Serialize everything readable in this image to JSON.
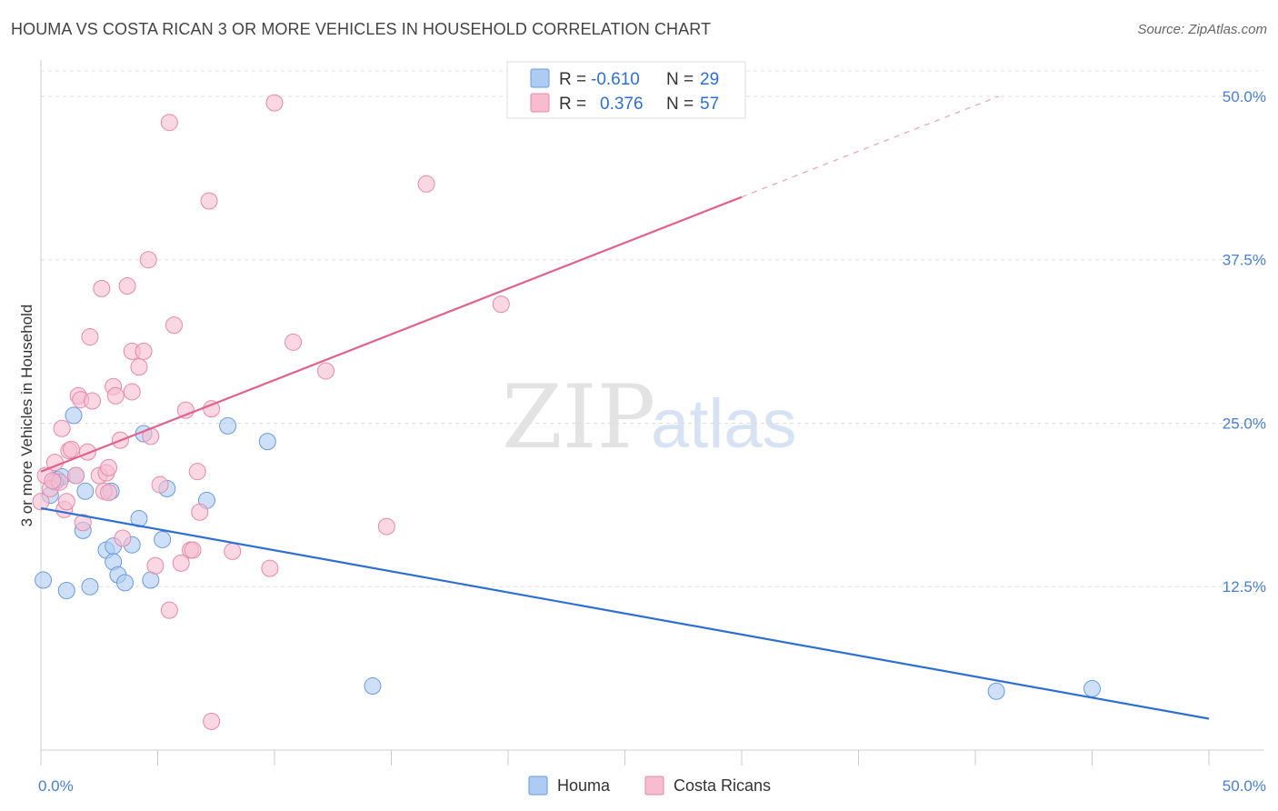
{
  "title": "HOUMA VS COSTA RICAN 3 OR MORE VEHICLES IN HOUSEHOLD CORRELATION CHART",
  "source": "Source: ZipAtlas.com",
  "watermark": {
    "zip": "ZIP",
    "atlas": "atlas"
  },
  "legend": {
    "rows": [
      {
        "r_label": "R =",
        "r_value": "-0.610",
        "n_label": "N =",
        "n_value": "29",
        "fill": "#aecbf2",
        "stroke": "#6a9bdc"
      },
      {
        "r_label": "R =",
        "r_value": "0.376",
        "n_label": "N =",
        "n_value": "57",
        "fill": "#f7bcd0",
        "stroke": "#e58aa8"
      }
    ]
  },
  "bottom_legend": [
    {
      "label": "Houma",
      "fill": "#aecbf2",
      "stroke": "#6a9bdc"
    },
    {
      "label": "Costa Ricans",
      "fill": "#f7bcd0",
      "stroke": "#e58aa8"
    }
  ],
  "chart_data": {
    "type": "scatter",
    "title": "HOUMA VS COSTA RICAN 3 OR MORE VEHICLES IN HOUSEHOLD CORRELATION CHART",
    "xlabel": "",
    "ylabel": "3 or more Vehicles in Household",
    "xlim": [
      0,
      50
    ],
    "ylim": [
      0,
      52.5
    ],
    "x_tick_labels": [
      "0.0%",
      "50.0%"
    ],
    "y_ticks": [
      12.5,
      25.0,
      37.5,
      50.0
    ],
    "y_tick_labels": [
      "12.5%",
      "25.0%",
      "37.5%",
      "50.0%"
    ],
    "grid": true,
    "legend_position": "top-center",
    "series": [
      {
        "name": "Houma",
        "color": "#6a9bdc",
        "fill": "#aecbf2",
        "trend": {
          "x": [
            0,
            50
          ],
          "y": [
            18.5,
            2.4
          ],
          "color": "#2f6fd1"
        },
        "points": [
          [
            0.1,
            13.0
          ],
          [
            0.4,
            19.5
          ],
          [
            0.7,
            20.7
          ],
          [
            0.9,
            20.9
          ],
          [
            1.1,
            12.2
          ],
          [
            1.5,
            21.0
          ],
          [
            1.4,
            25.6
          ],
          [
            1.8,
            16.8
          ],
          [
            1.9,
            19.8
          ],
          [
            2.1,
            12.5
          ],
          [
            2.8,
            15.3
          ],
          [
            3.1,
            15.6
          ],
          [
            3.1,
            14.4
          ],
          [
            3.3,
            13.4
          ],
          [
            3.6,
            12.8
          ],
          [
            3.9,
            15.7
          ],
          [
            4.2,
            17.7
          ],
          [
            4.4,
            24.2
          ],
          [
            4.7,
            13.0
          ],
          [
            5.2,
            16.1
          ],
          [
            5.4,
            20.0
          ],
          [
            7.1,
            19.1
          ],
          [
            8.0,
            24.8
          ],
          [
            9.7,
            23.6
          ],
          [
            14.2,
            4.9
          ],
          [
            40.9,
            4.5
          ],
          [
            45.0,
            4.7
          ],
          [
            3.0,
            19.8
          ],
          [
            0.6,
            20.5
          ]
        ]
      },
      {
        "name": "Costa Ricans",
        "color": "#e58aa8",
        "fill": "#f7bcd0",
        "trend": {
          "x": [
            0,
            30
          ],
          "y": [
            21.3,
            42.3
          ],
          "ext_x": [
            30,
            41
          ],
          "ext_y": [
            42.3,
            50.0
          ],
          "color": "#e0628e"
        },
        "points": [
          [
            0.0,
            19.0
          ],
          [
            0.2,
            21.0
          ],
          [
            0.4,
            20.0
          ],
          [
            0.6,
            22.0
          ],
          [
            0.8,
            20.5
          ],
          [
            0.9,
            24.6
          ],
          [
            1.0,
            18.4
          ],
          [
            1.1,
            19.0
          ],
          [
            1.2,
            22.9
          ],
          [
            1.3,
            23.0
          ],
          [
            1.5,
            21.0
          ],
          [
            1.6,
            27.1
          ],
          [
            1.7,
            26.8
          ],
          [
            1.8,
            17.4
          ],
          [
            2.0,
            22.8
          ],
          [
            2.1,
            31.6
          ],
          [
            2.2,
            26.7
          ],
          [
            2.5,
            21.0
          ],
          [
            2.6,
            35.3
          ],
          [
            2.7,
            19.8
          ],
          [
            2.8,
            21.2
          ],
          [
            2.9,
            21.6
          ],
          [
            3.1,
            27.8
          ],
          [
            3.2,
            27.1
          ],
          [
            3.4,
            23.7
          ],
          [
            3.5,
            16.2
          ],
          [
            3.7,
            35.5
          ],
          [
            3.9,
            30.5
          ],
          [
            3.9,
            27.4
          ],
          [
            4.2,
            29.3
          ],
          [
            4.4,
            30.5
          ],
          [
            4.6,
            37.5
          ],
          [
            4.7,
            24.0
          ],
          [
            4.9,
            14.1
          ],
          [
            5.1,
            20.3
          ],
          [
            5.5,
            48.0
          ],
          [
            5.5,
            10.7
          ],
          [
            5.7,
            32.5
          ],
          [
            6.0,
            14.3
          ],
          [
            6.2,
            26.0
          ],
          [
            6.4,
            15.3
          ],
          [
            6.5,
            15.3
          ],
          [
            6.7,
            21.3
          ],
          [
            6.8,
            18.2
          ],
          [
            7.2,
            42.0
          ],
          [
            7.3,
            26.1
          ],
          [
            7.3,
            2.2
          ],
          [
            8.2,
            15.2
          ],
          [
            9.8,
            13.9
          ],
          [
            10.0,
            49.5
          ],
          [
            10.8,
            31.2
          ],
          [
            12.2,
            29.0
          ],
          [
            14.8,
            17.1
          ],
          [
            16.5,
            43.3
          ],
          [
            19.7,
            34.1
          ],
          [
            0.5,
            20.6
          ],
          [
            2.9,
            19.7
          ]
        ]
      }
    ]
  }
}
